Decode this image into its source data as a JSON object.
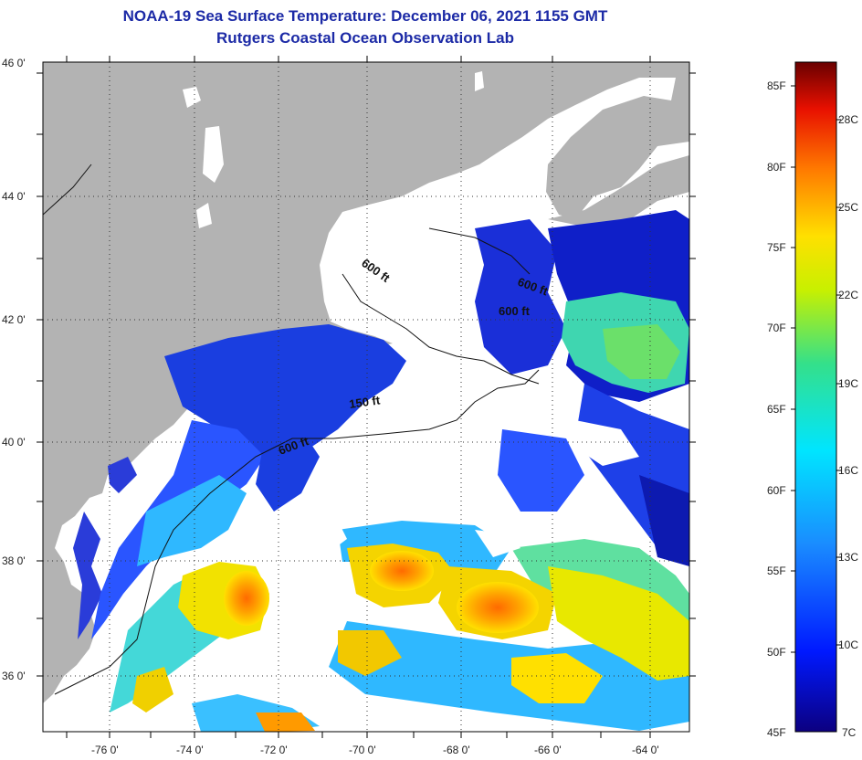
{
  "title": {
    "line1": "NOAA-19 Sea Surface Temperature:  December 06, 2021 1155 GMT",
    "line2": "Rutgers Coastal Ocean Observation Lab"
  },
  "axes": {
    "lat_labels": [
      "46 0'",
      "44 0'",
      "42 0'",
      "40 0'",
      "38 0'",
      "36 0'"
    ],
    "lon_labels": [
      "-76 0'",
      "-74 0'",
      "-72 0'",
      "-70 0'",
      "-68 0'",
      "-66 0'",
      "-64 0'"
    ]
  },
  "contours": {
    "label_600_a": "600 ft",
    "label_600_b": "600 ft",
    "label_600_c": "600 ft",
    "label_150": "150 ft",
    "label_600_d": "600 ft"
  },
  "colorbar": {
    "fahrenheit": [
      "85F",
      "80F",
      "75F",
      "70F",
      "65F",
      "60F",
      "55F",
      "50F",
      "45F"
    ],
    "celsius": [
      "28C",
      "25C",
      "22C",
      "19C",
      "16C",
      "13C",
      "10C",
      "7C"
    ]
  },
  "colors": {
    "land": "#b3b3b3",
    "cloud": "#ffffff",
    "title": "#1c2aa6"
  }
}
